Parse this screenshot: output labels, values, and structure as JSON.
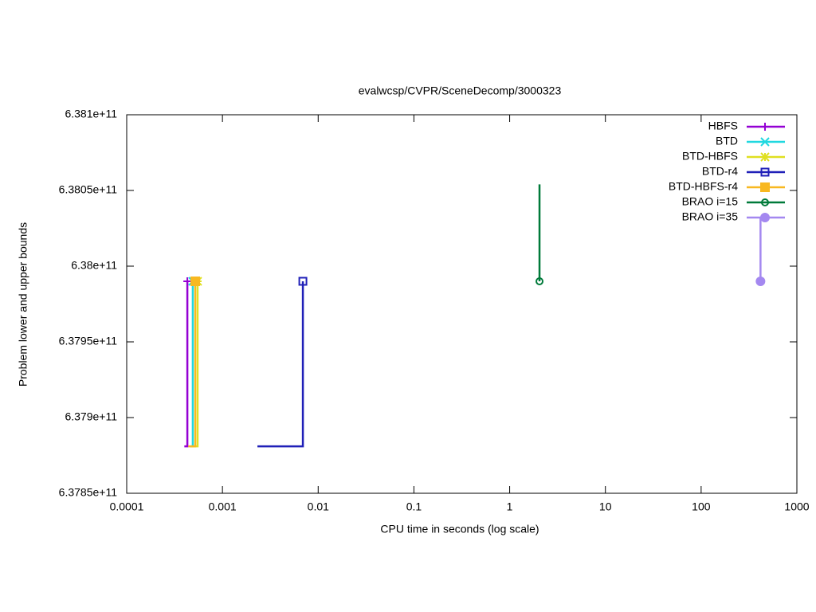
{
  "chart_data": {
    "type": "line",
    "title": "evalwcsp/CVPR/SceneDecomp/3000323",
    "x_label": "CPU time in seconds (log scale)",
    "y_label": "Problem lower and upper bounds",
    "x_scale": "log",
    "xlim": [
      0.0001,
      1000
    ],
    "xticks": [
      0.0001,
      0.001,
      0.01,
      0.1,
      1,
      10,
      100,
      1000
    ],
    "ylim": [
      637850000000,
      638100000000
    ],
    "yticks": [
      {
        "value": 637850000000,
        "label": "6.3785e+11"
      },
      {
        "value": 637900000000,
        "label": "6.379e+11"
      },
      {
        "value": 637950000000,
        "label": "6.3795e+11"
      },
      {
        "value": 638000000000,
        "label": "6.38e+11"
      },
      {
        "value": 638050000000,
        "label": "6.3805e+11"
      },
      {
        "value": 638100000000,
        "label": "6.381e+11"
      }
    ],
    "legend": "top-right",
    "series": [
      {
        "name": "HBFS",
        "color": "#9400d3",
        "marker": "plus",
        "x": [
          0.0004,
          0.00043,
          0.00043
        ],
        "values": [
          637881000000,
          637881000000,
          637990000000
        ]
      },
      {
        "name": "BTD",
        "color": "#20d8e0",
        "marker": "cross",
        "x": [
          0.00046,
          0.00049,
          0.00049
        ],
        "values": [
          637881000000,
          637881000000,
          637990000000
        ]
      },
      {
        "name": "BTD-HBFS",
        "color": "#e0e020",
        "marker": "star",
        "x": [
          0.00047,
          0.00055,
          0.00055
        ],
        "values": [
          637881000000,
          637881000000,
          637990000000
        ]
      },
      {
        "name": "BTD-r4",
        "color": "#2020b8",
        "marker": "square",
        "x": [
          0.00232,
          0.00692,
          0.00692
        ],
        "values": [
          637881000000,
          637881000000,
          637990000000
        ]
      },
      {
        "name": "BTD-HBFS-r4",
        "color": "#f8b820",
        "marker": "filled-square",
        "x": [
          0.00044,
          0.00052,
          0.00052
        ],
        "values": [
          637881000000,
          637881000000,
          637990000000
        ]
      },
      {
        "name": "BRAO i=15",
        "color": "#007a3a",
        "marker": "circle",
        "x": [
          2.05,
          2.05
        ],
        "values": [
          638054000000,
          637990000000
        ]
      },
      {
        "name": "BRAO i=35",
        "color": "#a488f0",
        "marker": "filled-circle",
        "x": [
          417,
          417
        ],
        "values": [
          638032000000,
          637990000000
        ]
      }
    ]
  }
}
